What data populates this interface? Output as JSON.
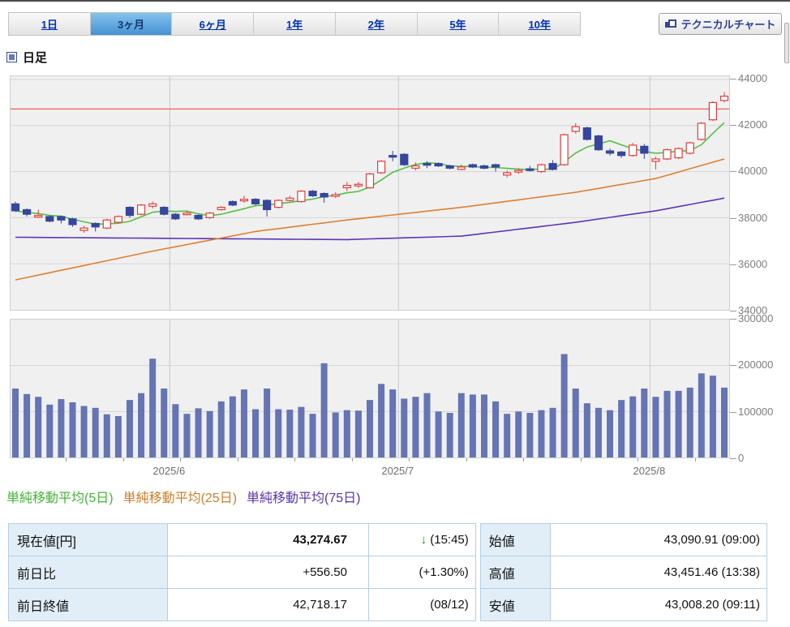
{
  "tabs": {
    "items": [
      {
        "name": "tab-1day",
        "label": "1日",
        "active": false
      },
      {
        "name": "tab-3months",
        "label": "3ヶ月",
        "active": true
      },
      {
        "name": "tab-6months",
        "label": "6ヶ月",
        "active": false
      },
      {
        "name": "tab-1year",
        "label": "1年",
        "active": false
      },
      {
        "name": "tab-2years",
        "label": "2年",
        "active": false
      },
      {
        "name": "tab-5years",
        "label": "5年",
        "active": false
      },
      {
        "name": "tab-10years",
        "label": "10年",
        "active": false
      }
    ]
  },
  "toolbar": {
    "technical_chart_label": "テクニカルチャート"
  },
  "heading": {
    "label": "日足"
  },
  "legend": {
    "items": [
      {
        "label": "単純移動平均(5日)",
        "color": "#44b437"
      },
      {
        "label": "単純移動平均(25日)",
        "color": "#cc7e2a"
      },
      {
        "label": "単純移動平均(75日)",
        "color": "#5a35ad"
      }
    ]
  },
  "colors": {
    "candle_up_stroke": "#e03c3c",
    "candle_up_fill": "#ffffff",
    "candle_down": "#36459e",
    "ma5": "#55c044",
    "ma25": "#dd8030",
    "ma75": "#5b36b8",
    "prev_close_line": "#f06060",
    "volume_bar": "#6474b4",
    "grid": "#d6d6d6",
    "month_grid": "#c9c9c9",
    "axis_text": "#7d7d7d"
  },
  "chart_data": [
    {
      "type": "candlestick",
      "title": "日足 3ヶ月 ローソク足チャート",
      "ylim": [
        34000,
        44140
      ],
      "yticks": [
        34000,
        36000,
        38000,
        40000,
        42000,
        44000
      ],
      "prev_close_line": 42718.17,
      "month_labels": [
        {
          "label": "2025/6",
          "start_index": 14
        },
        {
          "label": "2025/7",
          "start_index": 34
        },
        {
          "label": "2025/8",
          "start_index": 56
        }
      ],
      "ohlc": [
        [
          38600,
          38700,
          38250,
          38300
        ],
        [
          38350,
          38400,
          38050,
          38150
        ],
        [
          38050,
          38350,
          38000,
          38100
        ],
        [
          38050,
          38100,
          37800,
          37850
        ],
        [
          38050,
          38100,
          37750,
          37900
        ],
        [
          37950,
          38000,
          37600,
          37700
        ],
        [
          37450,
          37650,
          37350,
          37550
        ],
        [
          37750,
          37800,
          37400,
          37600
        ],
        [
          37550,
          37950,
          37500,
          37900
        ],
        [
          37800,
          38100,
          37750,
          38050
        ],
        [
          38450,
          38500,
          38000,
          38100
        ],
        [
          38150,
          38600,
          38100,
          38550
        ],
        [
          38500,
          38700,
          38400,
          38600
        ],
        [
          38450,
          38500,
          38100,
          38150
        ],
        [
          38150,
          38200,
          37900,
          37950
        ],
        [
          38150,
          38300,
          38100,
          38200
        ],
        [
          38100,
          38150,
          37900,
          37950
        ],
        [
          38000,
          38250,
          37950,
          38200
        ],
        [
          38350,
          38500,
          38300,
          38450
        ],
        [
          38700,
          38750,
          38500,
          38550
        ],
        [
          38800,
          38950,
          38650,
          38800
        ],
        [
          38800,
          38850,
          38550,
          38600
        ],
        [
          38750,
          38800,
          38050,
          38350
        ],
        [
          38450,
          38800,
          38400,
          38750
        ],
        [
          38750,
          38950,
          38700,
          38850
        ],
        [
          38700,
          39200,
          38650,
          39150
        ],
        [
          39150,
          39200,
          38900,
          38950
        ],
        [
          39050,
          39100,
          38650,
          38900
        ],
        [
          38950,
          39100,
          38850,
          39000
        ],
        [
          39300,
          39550,
          39150,
          39400
        ],
        [
          39400,
          39550,
          39300,
          39450
        ],
        [
          39300,
          39950,
          39250,
          39900
        ],
        [
          39950,
          40500,
          39900,
          40450
        ],
        [
          40700,
          40900,
          40450,
          40650
        ],
        [
          40750,
          40800,
          40250,
          40300
        ],
        [
          40150,
          40400,
          40050,
          40250
        ],
        [
          40350,
          40450,
          40150,
          40300
        ],
        [
          40350,
          40400,
          40200,
          40250
        ],
        [
          40250,
          40300,
          40100,
          40150
        ],
        [
          40100,
          40300,
          40050,
          40200
        ],
        [
          40300,
          40350,
          40150,
          40200
        ],
        [
          40250,
          40300,
          40100,
          40150
        ],
        [
          40300,
          40350,
          40000,
          40200
        ],
        [
          39850,
          40050,
          39750,
          39950
        ],
        [
          40000,
          40150,
          39900,
          40050
        ],
        [
          40120,
          40250,
          40000,
          40080
        ],
        [
          40000,
          40350,
          39950,
          40300
        ],
        [
          40350,
          40500,
          40050,
          40100
        ],
        [
          40300,
          41650,
          40250,
          41600
        ],
        [
          41750,
          42100,
          41650,
          41950
        ],
        [
          41900,
          41950,
          41350,
          41400
        ],
        [
          41550,
          41600,
          40900,
          40950
        ],
        [
          40900,
          41000,
          40700,
          40800
        ],
        [
          40850,
          40900,
          40600,
          40700
        ],
        [
          40700,
          41250,
          40650,
          41150
        ],
        [
          41100,
          41200,
          40550,
          40800
        ],
        [
          40450,
          40650,
          40100,
          40550
        ],
        [
          40550,
          41000,
          40500,
          40950
        ],
        [
          40600,
          41050,
          40550,
          41000
        ],
        [
          40800,
          41300,
          40750,
          41250
        ],
        [
          41400,
          42150,
          41350,
          42100
        ],
        [
          42250,
          43050,
          42200,
          43000
        ],
        [
          43090,
          43451,
          43008,
          43275
        ]
      ],
      "ma25": [
        35300,
        35404,
        35508,
        35612,
        35717,
        35821,
        35925,
        36029,
        36133,
        36237,
        36342,
        36446,
        36550,
        36644,
        36739,
        36833,
        36928,
        37022,
        37117,
        37211,
        37306,
        37400,
        37463,
        37525,
        37588,
        37650,
        37713,
        37775,
        37838,
        37900,
        37955,
        38010,
        38065,
        38120,
        38175,
        38230,
        38285,
        38340,
        38395,
        38450,
        38515,
        38580,
        38645,
        38710,
        38775,
        38840,
        38905,
        38970,
        39035,
        39100,
        39186,
        39271,
        39357,
        39443,
        39529,
        39614,
        39700,
        39842,
        39983,
        40125,
        40267,
        40408,
        40550
      ],
      "ma75": [
        37150,
        37147,
        37143,
        37140,
        37136,
        37133,
        37129,
        37126,
        37122,
        37119,
        37115,
        37112,
        37109,
        37105,
        37102,
        37098,
        37095,
        37091,
        37088,
        37084,
        37081,
        37078,
        37074,
        37071,
        37067,
        37064,
        37060,
        37057,
        37053,
        37050,
        37065,
        37080,
        37095,
        37110,
        37125,
        37140,
        37155,
        37170,
        37185,
        37200,
        37260,
        37320,
        37380,
        37440,
        37500,
        37560,
        37620,
        37680,
        37740,
        37800,
        37871,
        37943,
        38014,
        38086,
        38157,
        38229,
        38300,
        38392,
        38483,
        38575,
        38667,
        38758,
        38850
      ]
    },
    {
      "type": "bar",
      "title": "出来高",
      "ylim": [
        0,
        300000
      ],
      "yticks": [
        0,
        100000,
        200000,
        300000
      ],
      "values": [
        150000,
        138000,
        132000,
        115000,
        127000,
        120000,
        112000,
        108000,
        94000,
        90000,
        125000,
        140000,
        215000,
        150000,
        116000,
        95000,
        107000,
        101000,
        122000,
        133000,
        148000,
        105000,
        150000,
        105000,
        104000,
        110000,
        95000,
        205000,
        98000,
        103000,
        102000,
        125000,
        160000,
        148000,
        128000,
        132000,
        140000,
        100000,
        97000,
        140000,
        137000,
        137000,
        122000,
        95000,
        100000,
        97000,
        103000,
        108000,
        225000,
        150000,
        118000,
        108000,
        103000,
        125000,
        133000,
        150000,
        132000,
        145000,
        145000,
        152000,
        183000,
        178000,
        152000
      ]
    }
  ],
  "quote_table": {
    "left": {
      "rows": [
        {
          "label": "現在値[円]",
          "value": "43,274.67",
          "arrow": "↓",
          "note": "(15:45)"
        },
        {
          "label": "前日比",
          "value": "+556.50",
          "arrow": "",
          "note": "(+1.30%)"
        },
        {
          "label": "前日終値",
          "value": "42,718.17",
          "arrow": "",
          "note": "(08/12)"
        }
      ]
    },
    "right": {
      "rows": [
        {
          "label": "始値",
          "value": "43,090.91 (09:00)"
        },
        {
          "label": "高値",
          "value": "43,451.46 (13:38)"
        },
        {
          "label": "安値",
          "value": "43,008.20 (09:11)"
        }
      ]
    }
  }
}
